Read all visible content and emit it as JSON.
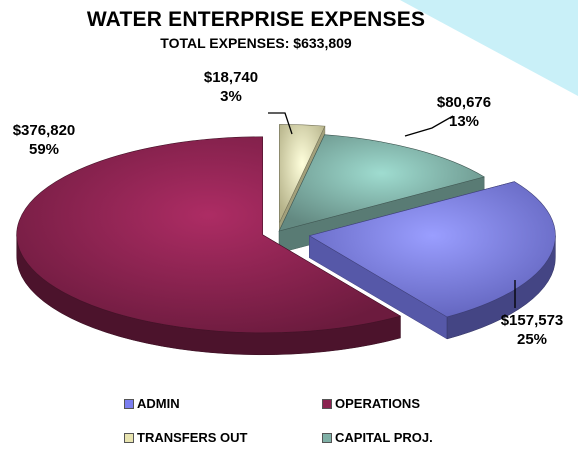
{
  "chart_data": {
    "type": "pie",
    "title": "WATER ENTERPRISE EXPENSES",
    "subtitle": "TOTAL EXPENSES: $633,809",
    "slices": [
      {
        "name": "ADMIN",
        "value": 157573,
        "value_label": "$157,573",
        "percent_label": "25%",
        "color": "#7b7ef0"
      },
      {
        "name": "OPERATIONS",
        "value": 376820,
        "value_label": "$376,820",
        "percent_label": "59%",
        "color": "#8a2350"
      },
      {
        "name": "TRANSFERS OUT",
        "value": 18740,
        "value_label": "$18,740",
        "percent_label": "3%",
        "color": "#e8e4b0"
      },
      {
        "name": "CAPITAL PROJ.",
        "value": 80676,
        "value_label": "$80,676",
        "percent_label": "13%",
        "color": "#7fb0a6"
      }
    ],
    "legend_placement": "bottom"
  }
}
